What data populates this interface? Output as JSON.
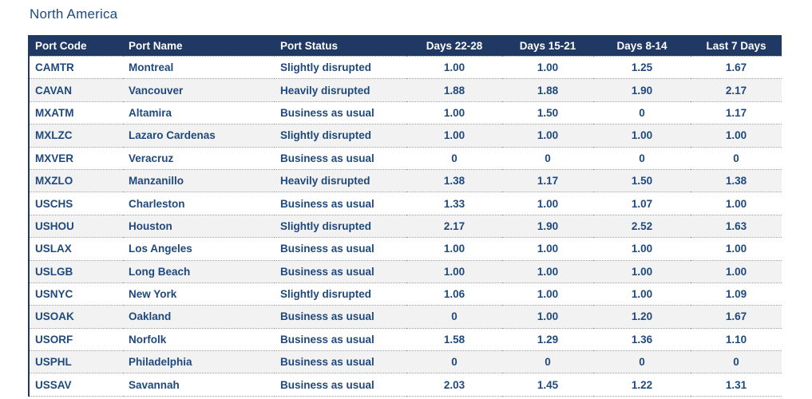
{
  "page": {
    "title": "North America"
  },
  "colors": {
    "header_bg": "#1f3864",
    "header_text": "#ffffff",
    "body_text": "#1f497d",
    "alt_row_bg": "#f2f2f2",
    "row_divider": "#9c9c9c",
    "left_accent_border": "#1f3864"
  },
  "chart_data": {
    "type": "table",
    "title": "North America",
    "columns": [
      {
        "label": "Port Code",
        "align": "left"
      },
      {
        "label": "Port Name",
        "align": "left"
      },
      {
        "label": "Port Status",
        "align": "left"
      },
      {
        "label": "Days 22-28",
        "align": "center"
      },
      {
        "label": "Days 15-21",
        "align": "center"
      },
      {
        "label": "Days 8-14",
        "align": "center"
      },
      {
        "label": "Last 7 Days",
        "align": "center"
      }
    ],
    "rows": [
      {
        "port_code": "CAMTR",
        "port_name": "Montreal",
        "port_status": "Slightly disrupted",
        "days_22_28": "1.00",
        "days_15_21": "1.00",
        "days_8_14": "1.25",
        "last_7_days": "1.67"
      },
      {
        "port_code": "CAVAN",
        "port_name": "Vancouver",
        "port_status": "Heavily disrupted",
        "days_22_28": "1.88",
        "days_15_21": "1.88",
        "days_8_14": "1.90",
        "last_7_days": "2.17"
      },
      {
        "port_code": "MXATM",
        "port_name": "Altamira",
        "port_status": "Business as usual",
        "days_22_28": "1.00",
        "days_15_21": "1.50",
        "days_8_14": "0",
        "last_7_days": "1.17"
      },
      {
        "port_code": "MXLZC",
        "port_name": "Lazaro Cardenas",
        "port_status": "Slightly disrupted",
        "days_22_28": "1.00",
        "days_15_21": "1.00",
        "days_8_14": "1.00",
        "last_7_days": "1.00"
      },
      {
        "port_code": "MXVER",
        "port_name": "Veracruz",
        "port_status": "Business as usual",
        "days_22_28": "0",
        "days_15_21": "0",
        "days_8_14": "0",
        "last_7_days": "0"
      },
      {
        "port_code": "MXZLO",
        "port_name": "Manzanillo",
        "port_status": "Heavily disrupted",
        "days_22_28": "1.38",
        "days_15_21": "1.17",
        "days_8_14": "1.50",
        "last_7_days": "1.38"
      },
      {
        "port_code": "USCHS",
        "port_name": "Charleston",
        "port_status": "Business as usual",
        "days_22_28": "1.33",
        "days_15_21": "1.00",
        "days_8_14": "1.07",
        "last_7_days": "1.00"
      },
      {
        "port_code": "USHOU",
        "port_name": "Houston",
        "port_status": "Slightly disrupted",
        "days_22_28": "2.17",
        "days_15_21": "1.90",
        "days_8_14": "2.52",
        "last_7_days": "1.63"
      },
      {
        "port_code": "USLAX",
        "port_name": "Los Angeles",
        "port_status": "Business as usual",
        "days_22_28": "1.00",
        "days_15_21": "1.00",
        "days_8_14": "1.00",
        "last_7_days": "1.00"
      },
      {
        "port_code": "USLGB",
        "port_name": "Long Beach",
        "port_status": "Business as usual",
        "days_22_28": "1.00",
        "days_15_21": "1.00",
        "days_8_14": "1.00",
        "last_7_days": "1.00"
      },
      {
        "port_code": "USNYC",
        "port_name": "New York",
        "port_status": "Slightly disrupted",
        "days_22_28": "1.06",
        "days_15_21": "1.00",
        "days_8_14": "1.00",
        "last_7_days": "1.09"
      },
      {
        "port_code": "USOAK",
        "port_name": "Oakland",
        "port_status": "Business as usual",
        "days_22_28": "0",
        "days_15_21": "1.00",
        "days_8_14": "1.20",
        "last_7_days": "1.67"
      },
      {
        "port_code": "USORF",
        "port_name": "Norfolk",
        "port_status": "Business as usual",
        "days_22_28": "1.58",
        "days_15_21": "1.29",
        "days_8_14": "1.36",
        "last_7_days": "1.10"
      },
      {
        "port_code": "USPHL",
        "port_name": "Philadelphia",
        "port_status": "Business as usual",
        "days_22_28": "0",
        "days_15_21": "0",
        "days_8_14": "0",
        "last_7_days": "0"
      },
      {
        "port_code": "USSAV",
        "port_name": "Savannah",
        "port_status": "Business as usual",
        "days_22_28": "2.03",
        "days_15_21": "1.45",
        "days_8_14": "1.22",
        "last_7_days": "1.31"
      }
    ]
  }
}
